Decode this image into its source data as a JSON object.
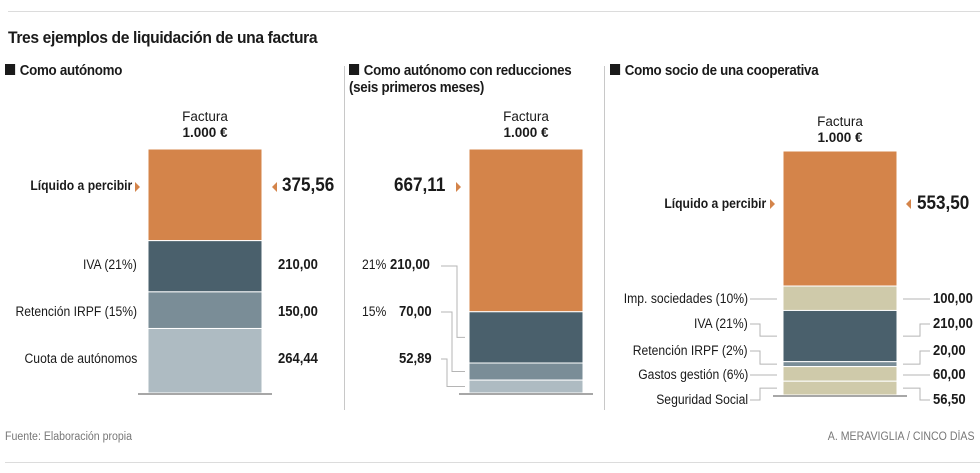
{
  "chart_data": {
    "type": "bar",
    "title": "Tres ejemplos de liquidación de una factura",
    "source": "Fuente: Elaboración propia",
    "credit": "A. MERAVIGLIA / CINCO DÍAS",
    "total_label": "Factura",
    "total_value": "1.000 €",
    "total": 1000,
    "colors": {
      "liquido": "#d4844a",
      "iva": "#4a606c",
      "irpf": "#7a8d97",
      "cuota": "#aebbc2",
      "coop": "#cfcaaa",
      "baseline": "#8a8a8a",
      "leader": "#b5b5b5"
    },
    "panels": [
      {
        "subtitle": "Como autónomo",
        "subtitle2": "",
        "segments": [
          {
            "name": "Líquido a percibir",
            "value": 375.56,
            "label": "375,56",
            "color_key": "liquido"
          },
          {
            "name": "IVA (21%)",
            "value": 210.0,
            "label": "210,00",
            "color_key": "iva"
          },
          {
            "name": "Retención IRPF (15%)",
            "value": 150.0,
            "label": "150,00",
            "color_key": "irpf"
          },
          {
            "name": "Cuota de autónomos",
            "value": 264.44,
            "label": "264,44",
            "color_key": "cuota"
          }
        ]
      },
      {
        "subtitle": "Como autónomo con reducciones",
        "subtitle2": "(seis primeros meses)",
        "segments": [
          {
            "name": "",
            "value": 667.11,
            "label": "667,11",
            "color_key": "liquido"
          },
          {
            "name": "21%",
            "value": 210.0,
            "label": "210,00",
            "color_key": "iva"
          },
          {
            "name": "15%",
            "value": 70.0,
            "label": "70,00",
            "color_key": "irpf"
          },
          {
            "name": "",
            "value": 52.89,
            "label": "52,89",
            "color_key": "cuota"
          }
        ]
      },
      {
        "subtitle": "Como socio de una cooperativa",
        "subtitle2": "",
        "segments": [
          {
            "name": "Líquido a percibir",
            "value": 553.5,
            "label": "553,50",
            "color_key": "liquido"
          },
          {
            "name": "Imp. sociedades (10%)",
            "value": 100.0,
            "label": "100,00",
            "color_key": "coop"
          },
          {
            "name": "IVA (21%)",
            "value": 210.0,
            "label": "210,00",
            "color_key": "iva"
          },
          {
            "name": "Retención IRPF (2%)",
            "value": 20.0,
            "label": "20,00",
            "color_key": "irpf"
          },
          {
            "name": "Gastos gestión (6%)",
            "value": 60.0,
            "label": "60,00",
            "color_key": "coop"
          },
          {
            "name": "Seguridad Social",
            "value": 56.5,
            "label": "56,50",
            "color_key": "coop"
          }
        ]
      }
    ]
  }
}
